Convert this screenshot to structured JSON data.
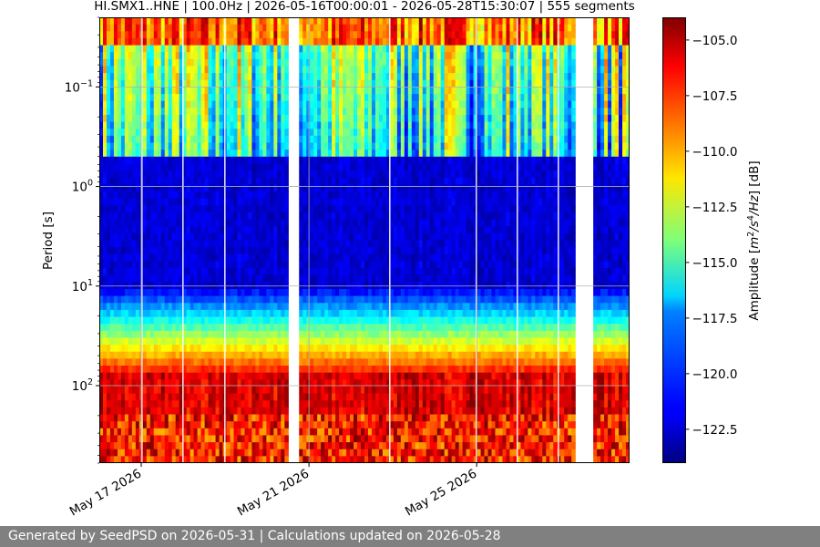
{
  "chart_data": {
    "type": "heatmap",
    "title": "HI.SMX1..HNE | 100.0Hz | 2026-05-16T00:00:01 - 2026-05-28T15:30:07 | 555 segments",
    "ylabel": "Period [s]",
    "colorbar_label_parts": [
      "Amplitude [",
      "m",
      "2",
      "/s",
      "4",
      "/Hz",
      "] [dB]"
    ],
    "x_range": [
      "2026-05-16T00:00:01",
      "2026-05-28T15:30:07"
    ],
    "x_ticks": [
      {
        "date": "2026-05-17",
        "label": "May 17 2026"
      },
      {
        "date": "2026-05-21",
        "label": "May 21 2026"
      },
      {
        "date": "2026-05-25",
        "label": "May 25 2026"
      }
    ],
    "y_scale": "log",
    "y_inverted": true,
    "y_range": [
      0.02,
      600
    ],
    "y_ticks": [
      {
        "value": 0.1,
        "base": "10",
        "exp": "−1"
      },
      {
        "value": 1,
        "base": "10",
        "exp": "0"
      },
      {
        "value": 10,
        "base": "10",
        "exp": "1"
      },
      {
        "value": 100,
        "base": "10",
        "exp": "2"
      }
    ],
    "grid": true,
    "colorbar": {
      "colormap": "jet",
      "range": [
        -124,
        -104
      ],
      "ticks": [
        -105.0,
        -107.5,
        -110.0,
        -112.5,
        -115.0,
        -117.5,
        -120.0,
        -122.5
      ],
      "tick_labels": [
        "−105.0",
        "−107.5",
        "−110.0",
        "−112.5",
        "−115.0",
        "−117.5",
        "−120.0",
        "−122.5"
      ]
    },
    "data_gaps": [
      {
        "start": "2026-05-20T12:30:00",
        "end": "2026-05-20T17:30:00"
      },
      {
        "start": "2026-05-27T09:00:00",
        "end": "2026-05-27T19:00:00"
      }
    ]
  },
  "footer": {
    "text": "Generated by SeedPSD on 2026-05-31 | Calculations updated on 2026-05-28"
  }
}
